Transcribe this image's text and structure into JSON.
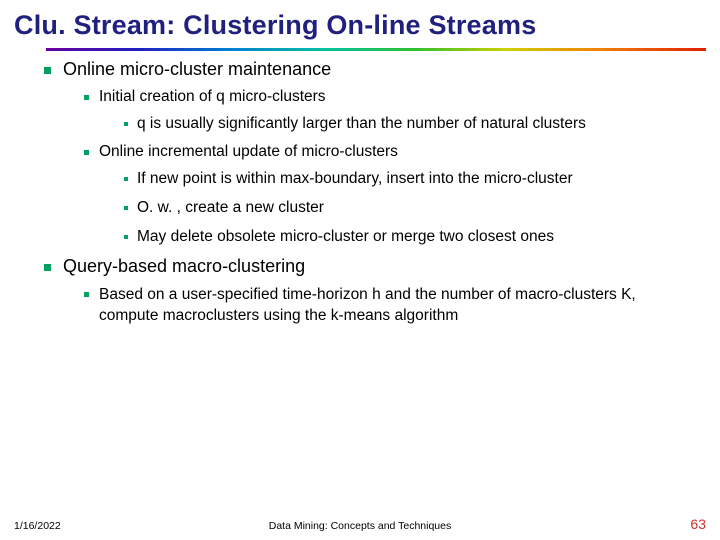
{
  "title": "Clu. Stream: Clustering On-line Streams",
  "bullets": {
    "a": "Online micro-cluster maintenance",
    "a1": "Initial creation of q micro-clusters",
    "a1a": "q is usually significantly larger than the number of natural clusters",
    "a2": "Online incremental update of micro-clusters",
    "a2a": "If new point is within max-boundary, insert into the micro-cluster",
    "a2b": "O. w. , create a new cluster",
    "a2c": "May delete obsolete micro-cluster or merge two closest ones",
    "b": "Query-based macro-clustering",
    "b1": "Based on a user-specified time-horizon h and the number of macro-clusters K, compute macroclusters using the k-means algorithm"
  },
  "footer": {
    "date": "1/16/2022",
    "center": "Data Mining: Concepts and Techniques",
    "page": "63"
  },
  "colors": {
    "title": "#20207f",
    "bullet": "#00a060",
    "page": "#d03030"
  }
}
